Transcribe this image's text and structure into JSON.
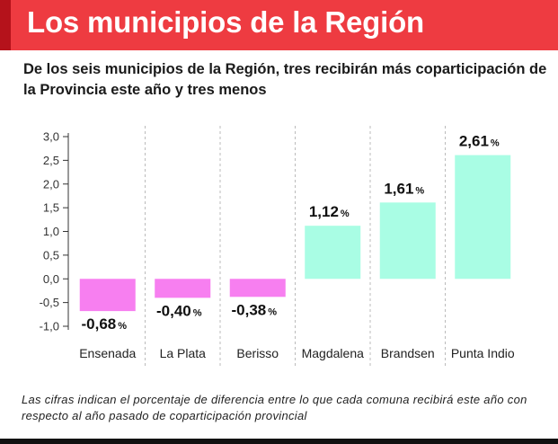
{
  "header": {
    "title": "Los municipios de la Región"
  },
  "subtitle": "De los seis municipios de la Región, tres recibirán más coparticipación de la Provincia este año y tres menos",
  "footnote": "Las cifras indican el porcentaje de diferencia entre lo que cada comuna recibirá este año con respecto al año pasado de coparticipación provincial",
  "colors": {
    "header": "#ee3b41",
    "header_accent": "#b5121b",
    "negative": "#f77ff0",
    "positive": "#a9fde4",
    "grid": "#bbbbbb"
  },
  "chart_data": {
    "type": "bar",
    "title": "",
    "xlabel": "",
    "ylabel": "",
    "categories": [
      "Ensenada",
      "La Plata",
      "Berisso",
      "Magdalena",
      "Brandsen",
      "Punta Indio"
    ],
    "values": [
      -0.68,
      -0.4,
      -0.38,
      1.12,
      1.61,
      2.61
    ],
    "data_labels": [
      "-0,68",
      "-0,40",
      "-0,38",
      "1,12",
      "1,61",
      "2,61"
    ],
    "label_unit": "%",
    "yticks": [
      3.0,
      2.5,
      2.0,
      1.5,
      1.0,
      0.5,
      0.0,
      -0.5,
      -1.0
    ],
    "ytick_labels": [
      "3,0",
      "2,5",
      "2,0",
      "1,5",
      "1,0",
      "0,5",
      "0,0",
      "-0,5",
      "-1,0"
    ],
    "ylim": [
      -1.0,
      3.0
    ],
    "grid": false
  }
}
